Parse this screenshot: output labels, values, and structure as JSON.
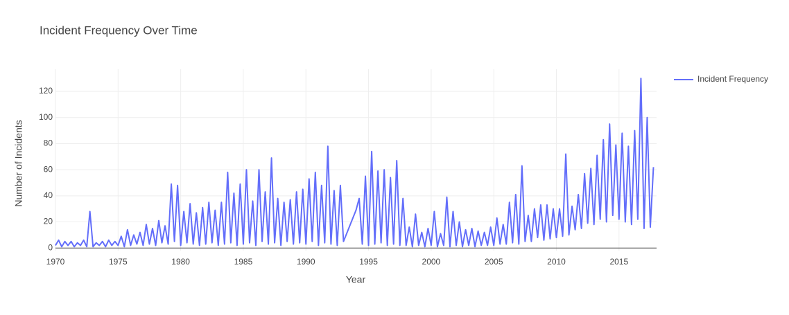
{
  "chart_data": {
    "type": "line",
    "title": "Incident Frequency Over Time",
    "x_label": "Year",
    "y_label": "Number of Incidents",
    "x": [
      1970,
      1970.25,
      1970.5,
      1970.75,
      1971,
      1971.25,
      1971.5,
      1971.75,
      1972,
      1972.25,
      1972.5,
      1972.75,
      1973,
      1973.25,
      1973.5,
      1973.75,
      1974,
      1974.25,
      1974.5,
      1974.75,
      1975,
      1975.25,
      1975.5,
      1975.75,
      1976,
      1976.25,
      1976.5,
      1976.75,
      1977,
      1977.25,
      1977.5,
      1977.75,
      1978,
      1978.25,
      1978.5,
      1978.75,
      1979,
      1979.25,
      1979.5,
      1979.75,
      1980,
      1980.25,
      1980.5,
      1980.75,
      1981,
      1981.25,
      1981.5,
      1981.75,
      1982,
      1982.25,
      1982.5,
      1982.75,
      1983,
      1983.25,
      1983.5,
      1983.75,
      1984,
      1984.25,
      1984.5,
      1984.75,
      1985,
      1985.25,
      1985.5,
      1985.75,
      1986,
      1986.25,
      1986.5,
      1986.75,
      1987,
      1987.25,
      1987.5,
      1987.75,
      1988,
      1988.25,
      1988.5,
      1988.75,
      1989,
      1989.25,
      1989.5,
      1989.75,
      1990,
      1990.25,
      1990.5,
      1990.75,
      1991,
      1991.25,
      1991.5,
      1991.75,
      1992,
      1992.25,
      1992.5,
      1992.75,
      1993,
      1994,
      1994.25,
      1994.5,
      1994.75,
      1995,
      1995.25,
      1995.5,
      1995.75,
      1996,
      1996.25,
      1996.5,
      1996.75,
      1997,
      1997.25,
      1997.5,
      1997.75,
      1998,
      1998.25,
      1998.5,
      1998.75,
      1999,
      1999.25,
      1999.5,
      1999.75,
      2000,
      2000.25,
      2000.5,
      2000.75,
      2001,
      2001.25,
      2001.5,
      2001.75,
      2002,
      2002.25,
      2002.5,
      2002.75,
      2003,
      2003.25,
      2003.5,
      2003.75,
      2004,
      2004.25,
      2004.5,
      2004.75,
      2005,
      2005.25,
      2005.5,
      2005.75,
      2006,
      2006.25,
      2006.5,
      2006.75,
      2007,
      2007.25,
      2007.5,
      2007.75,
      2008,
      2008.25,
      2008.5,
      2008.75,
      2009,
      2009.25,
      2009.5,
      2009.75,
      2010,
      2010.25,
      2010.5,
      2010.75,
      2011,
      2011.25,
      2011.5,
      2011.75,
      2012,
      2012.25,
      2012.5,
      2012.75,
      2013,
      2013.25,
      2013.5,
      2013.75,
      2014,
      2014.25,
      2014.5,
      2014.75,
      2015,
      2015.25,
      2015.5,
      2015.75,
      2016,
      2016.25,
      2016.5,
      2016.75,
      2017,
      2017.25,
      2017.5,
      2017.75
    ],
    "series": [
      {
        "name": "Incident Frequency",
        "color": "#636efa",
        "values": [
          2,
          6,
          1,
          5,
          2,
          5,
          1,
          4,
          2,
          6,
          1,
          28,
          1,
          4,
          2,
          5,
          1,
          6,
          2,
          5,
          2,
          9,
          1,
          14,
          2,
          10,
          3,
          12,
          2,
          18,
          3,
          15,
          2,
          21,
          4,
          17,
          3,
          49,
          5,
          48,
          2,
          28,
          4,
          34,
          3,
          27,
          2,
          31,
          3,
          35,
          4,
          29,
          2,
          35,
          3,
          58,
          4,
          42,
          2,
          49,
          3,
          60,
          4,
          36,
          2,
          60,
          5,
          43,
          3,
          69,
          4,
          38,
          2,
          35,
          5,
          37,
          3,
          43,
          4,
          45,
          3,
          53,
          5,
          58,
          2,
          48,
          4,
          78,
          3,
          44,
          2,
          48,
          5,
          29,
          38,
          3,
          55,
          2,
          74,
          3,
          59,
          4,
          60,
          2,
          54,
          3,
          67,
          2,
          38,
          2,
          16,
          1,
          26,
          2,
          12,
          1,
          15,
          2,
          28,
          1,
          11,
          2,
          39,
          1,
          28,
          2,
          20,
          1,
          14,
          2,
          15,
          1,
          13,
          2,
          12,
          2,
          16,
          2,
          23,
          3,
          18,
          3,
          35,
          4,
          41,
          3,
          63,
          5,
          25,
          5,
          30,
          8,
          33,
          6,
          33,
          7,
          30,
          8,
          30,
          9,
          72,
          10,
          32,
          14,
          41,
          15,
          57,
          19,
          61,
          18,
          71,
          22,
          83,
          20,
          95,
          25,
          79,
          22,
          88,
          20,
          78,
          18,
          90,
          22,
          130,
          15,
          100,
          16,
          62
        ]
      }
    ],
    "xlim": [
      1970,
      2018
    ],
    "ylim": [
      -2,
      137
    ],
    "xticks": [
      1970,
      1975,
      1980,
      1985,
      1990,
      1995,
      2000,
      2005,
      2010,
      2015
    ],
    "yticks": [
      0,
      20,
      40,
      60,
      80,
      100,
      120
    ],
    "grid": true,
    "legend": "top-right"
  }
}
